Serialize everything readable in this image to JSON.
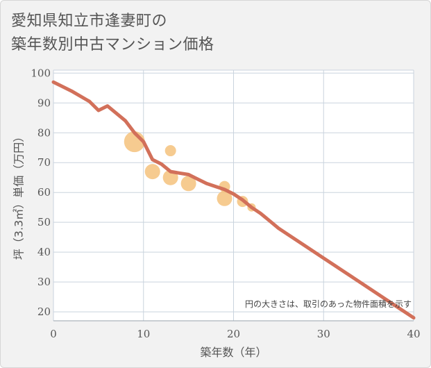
{
  "chart_data": {
    "type": "scatter",
    "title": [
      "愛知県知立市逢妻町の",
      "築年数別中古マンション価格"
    ],
    "xlabel": "築年数（年）",
    "ylabel": "坪（3.3㎡）単価（万円）",
    "xlim": [
      0,
      40
    ],
    "ylim": [
      17,
      101
    ],
    "x_ticks": [
      0,
      10,
      20,
      30,
      40
    ],
    "y_ticks": [
      20,
      30,
      40,
      50,
      60,
      70,
      80,
      90,
      100
    ],
    "note": "円の大きさは、取引のあった物件面積を示す",
    "colors": {
      "bubble": "#f5c27d",
      "line": "#d2705a",
      "plot_bg": "#ffffff",
      "grid": "#c9d3dd"
    },
    "scatter": [
      {
        "x": 9,
        "y": 77,
        "size": 15
      },
      {
        "x": 11,
        "y": 67,
        "size": 11
      },
      {
        "x": 13,
        "y": 65,
        "size": 11
      },
      {
        "x": 13,
        "y": 74,
        "size": 8
      },
      {
        "x": 15,
        "y": 63,
        "size": 11
      },
      {
        "x": 19,
        "y": 58,
        "size": 11
      },
      {
        "x": 19,
        "y": 62,
        "size": 8
      },
      {
        "x": 21,
        "y": 57,
        "size": 8
      },
      {
        "x": 22,
        "y": 55,
        "size": 6
      }
    ],
    "trend_line": {
      "x": [
        0,
        2,
        4,
        5,
        6,
        7,
        8,
        9,
        10,
        11,
        12,
        13,
        14,
        15,
        16,
        17,
        18,
        19,
        20,
        21,
        22,
        23,
        24,
        25,
        26,
        28,
        30,
        32,
        34,
        36,
        38,
        40
      ],
      "y": [
        97,
        94,
        90.5,
        87.5,
        89,
        86.5,
        84,
        80,
        77,
        71,
        69.5,
        67,
        66.5,
        66,
        64.5,
        63,
        62,
        61,
        59.5,
        57.5,
        55,
        53,
        50.5,
        48,
        46,
        42,
        38,
        34,
        30,
        26,
        22,
        18
      ]
    }
  }
}
